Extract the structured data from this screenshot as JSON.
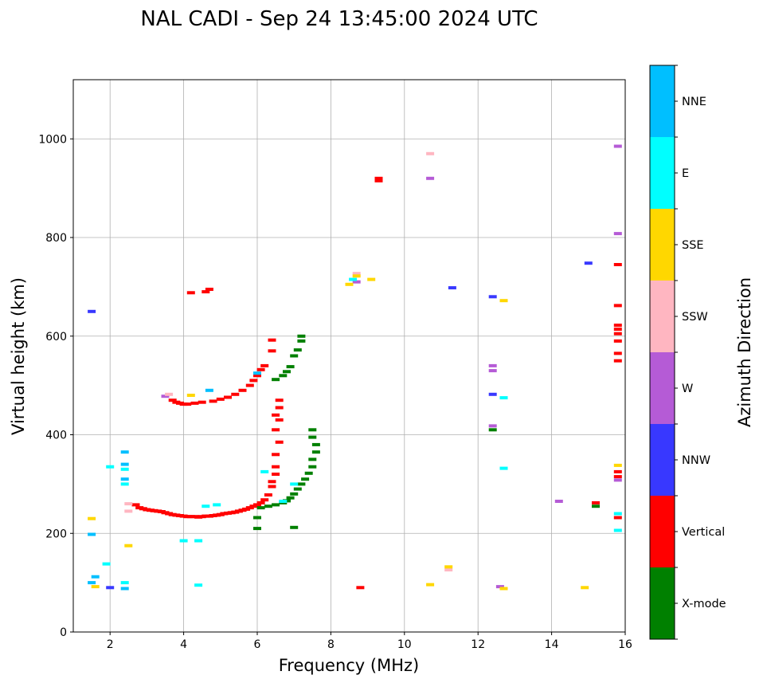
{
  "chart_data": {
    "type": "scatter",
    "title": "NAL CADI - Sep 24 13:45:00 2024 UTC",
    "xlabel": "Frequency (MHz)",
    "ylabel": "Virtual height (km)",
    "xlim": [
      1,
      16
    ],
    "ylim": [
      0,
      1120
    ],
    "xticks": [
      2,
      4,
      6,
      8,
      10,
      12,
      14,
      16
    ],
    "yticks": [
      0,
      200,
      400,
      600,
      800,
      1000
    ],
    "grid": true,
    "colorbar": {
      "title": "Azimuth Direction",
      "categories": [
        {
          "name": "X-mode",
          "color": "#008000"
        },
        {
          "name": "Vertical",
          "color": "#ff0000"
        },
        {
          "name": "NNW",
          "color": "#3838ff"
        },
        {
          "name": "W",
          "color": "#b55bd6"
        },
        {
          "name": "SSW",
          "color": "#ffb6c1"
        },
        {
          "name": "SSE",
          "color": "#ffd700"
        },
        {
          "name": "E",
          "color": "#00ffff"
        },
        {
          "name": "NNE",
          "color": "#00bfff"
        }
      ]
    },
    "points": [
      {
        "series": "Vertical",
        "x": 2.7,
        "y": 258
      },
      {
        "series": "Vertical",
        "x": 2.8,
        "y": 252
      },
      {
        "series": "Vertical",
        "x": 2.9,
        "y": 250
      },
      {
        "series": "Vertical",
        "x": 3.0,
        "y": 248
      },
      {
        "series": "Vertical",
        "x": 3.1,
        "y": 247
      },
      {
        "series": "Vertical",
        "x": 3.2,
        "y": 246
      },
      {
        "series": "Vertical",
        "x": 3.3,
        "y": 245
      },
      {
        "series": "Vertical",
        "x": 3.4,
        "y": 244
      },
      {
        "series": "Vertical",
        "x": 3.5,
        "y": 242
      },
      {
        "series": "Vertical",
        "x": 3.6,
        "y": 240
      },
      {
        "series": "Vertical",
        "x": 3.7,
        "y": 238
      },
      {
        "series": "Vertical",
        "x": 3.8,
        "y": 237
      },
      {
        "series": "Vertical",
        "x": 3.9,
        "y": 236
      },
      {
        "series": "Vertical",
        "x": 4.0,
        "y": 235
      },
      {
        "series": "Vertical",
        "x": 4.1,
        "y": 234
      },
      {
        "series": "Vertical",
        "x": 4.2,
        "y": 234
      },
      {
        "series": "Vertical",
        "x": 4.3,
        "y": 234
      },
      {
        "series": "Vertical",
        "x": 4.4,
        "y": 233
      },
      {
        "series": "Vertical",
        "x": 4.5,
        "y": 234
      },
      {
        "series": "Vertical",
        "x": 4.6,
        "y": 235
      },
      {
        "series": "Vertical",
        "x": 4.7,
        "y": 235
      },
      {
        "series": "Vertical",
        "x": 4.8,
        "y": 236
      },
      {
        "series": "Vertical",
        "x": 4.9,
        "y": 237
      },
      {
        "series": "Vertical",
        "x": 5.0,
        "y": 238
      },
      {
        "series": "Vertical",
        "x": 5.1,
        "y": 240
      },
      {
        "series": "Vertical",
        "x": 5.2,
        "y": 241
      },
      {
        "series": "Vertical",
        "x": 5.3,
        "y": 242
      },
      {
        "series": "Vertical",
        "x": 5.4,
        "y": 243
      },
      {
        "series": "Vertical",
        "x": 5.5,
        "y": 245
      },
      {
        "series": "Vertical",
        "x": 5.6,
        "y": 247
      },
      {
        "series": "Vertical",
        "x": 5.7,
        "y": 249
      },
      {
        "series": "Vertical",
        "x": 5.8,
        "y": 252
      },
      {
        "series": "Vertical",
        "x": 5.9,
        "y": 255
      },
      {
        "series": "Vertical",
        "x": 6.0,
        "y": 258
      },
      {
        "series": "Vertical",
        "x": 6.1,
        "y": 262
      },
      {
        "series": "Vertical",
        "x": 6.2,
        "y": 268
      },
      {
        "series": "Vertical",
        "x": 6.3,
        "y": 278
      },
      {
        "series": "Vertical",
        "x": 6.4,
        "y": 295
      },
      {
        "series": "Vertical",
        "x": 6.4,
        "y": 305
      },
      {
        "series": "Vertical",
        "x": 6.5,
        "y": 320
      },
      {
        "series": "Vertical",
        "x": 6.5,
        "y": 335
      },
      {
        "series": "Vertical",
        "x": 6.5,
        "y": 360
      },
      {
        "series": "Vertical",
        "x": 6.6,
        "y": 385
      },
      {
        "series": "Vertical",
        "x": 6.5,
        "y": 410
      },
      {
        "series": "Vertical",
        "x": 6.6,
        "y": 430
      },
      {
        "series": "Vertical",
        "x": 6.5,
        "y": 440
      },
      {
        "series": "Vertical",
        "x": 6.6,
        "y": 455
      },
      {
        "series": "Vertical",
        "x": 6.6,
        "y": 470
      },
      {
        "series": "Vertical",
        "x": 3.7,
        "y": 470
      },
      {
        "series": "Vertical",
        "x": 3.8,
        "y": 466
      },
      {
        "series": "Vertical",
        "x": 3.9,
        "y": 464
      },
      {
        "series": "Vertical",
        "x": 4.0,
        "y": 462
      },
      {
        "series": "Vertical",
        "x": 4.1,
        "y": 462
      },
      {
        "series": "Vertical",
        "x": 4.3,
        "y": 464
      },
      {
        "series": "Vertical",
        "x": 4.5,
        "y": 466
      },
      {
        "series": "Vertical",
        "x": 4.8,
        "y": 468
      },
      {
        "series": "Vertical",
        "x": 5.0,
        "y": 472
      },
      {
        "series": "Vertical",
        "x": 5.2,
        "y": 476
      },
      {
        "series": "Vertical",
        "x": 5.4,
        "y": 482
      },
      {
        "series": "Vertical",
        "x": 5.6,
        "y": 490
      },
      {
        "series": "Vertical",
        "x": 5.8,
        "y": 500
      },
      {
        "series": "Vertical",
        "x": 5.9,
        "y": 510
      },
      {
        "series": "Vertical",
        "x": 6.0,
        "y": 520
      },
      {
        "series": "Vertical",
        "x": 6.1,
        "y": 532
      },
      {
        "series": "Vertical",
        "x": 6.2,
        "y": 540
      },
      {
        "series": "Vertical",
        "x": 6.4,
        "y": 570
      },
      {
        "series": "Vertical",
        "x": 6.4,
        "y": 592
      },
      {
        "series": "Vertical",
        "x": 4.2,
        "y": 688
      },
      {
        "series": "Vertical",
        "x": 4.6,
        "y": 690
      },
      {
        "series": "Vertical",
        "x": 4.7,
        "y": 695
      },
      {
        "series": "Vertical",
        "x": 9.3,
        "y": 920
      },
      {
        "series": "Vertical",
        "x": 9.3,
        "y": 915
      },
      {
        "series": "Vertical",
        "x": 8.8,
        "y": 90
      },
      {
        "series": "Vertical",
        "x": 15.8,
        "y": 745
      },
      {
        "series": "Vertical",
        "x": 15.8,
        "y": 662
      },
      {
        "series": "Vertical",
        "x": 15.8,
        "y": 622
      },
      {
        "series": "Vertical",
        "x": 15.8,
        "y": 614
      },
      {
        "series": "Vertical",
        "x": 15.8,
        "y": 605
      },
      {
        "series": "Vertical",
        "x": 15.8,
        "y": 590
      },
      {
        "series": "Vertical",
        "x": 15.8,
        "y": 565
      },
      {
        "series": "Vertical",
        "x": 15.8,
        "y": 550
      },
      {
        "series": "Vertical",
        "x": 15.8,
        "y": 325
      },
      {
        "series": "Vertical",
        "x": 15.8,
        "y": 315
      },
      {
        "series": "Vertical",
        "x": 15.8,
        "y": 232
      },
      {
        "series": "Vertical",
        "x": 15.2,
        "y": 262
      },
      {
        "series": "X-mode",
        "x": 6.0,
        "y": 232
      },
      {
        "series": "X-mode",
        "x": 6.0,
        "y": 210
      },
      {
        "series": "X-mode",
        "x": 6.1,
        "y": 252
      },
      {
        "series": "X-mode",
        "x": 6.3,
        "y": 255
      },
      {
        "series": "X-mode",
        "x": 6.5,
        "y": 258
      },
      {
        "series": "X-mode",
        "x": 6.7,
        "y": 262
      },
      {
        "series": "X-mode",
        "x": 6.8,
        "y": 266
      },
      {
        "series": "X-mode",
        "x": 6.9,
        "y": 272
      },
      {
        "series": "X-mode",
        "x": 7.0,
        "y": 280
      },
      {
        "series": "X-mode",
        "x": 7.1,
        "y": 290
      },
      {
        "series": "X-mode",
        "x": 7.2,
        "y": 300
      },
      {
        "series": "X-mode",
        "x": 7.3,
        "y": 310
      },
      {
        "series": "X-mode",
        "x": 7.4,
        "y": 322
      },
      {
        "series": "X-mode",
        "x": 7.5,
        "y": 335
      },
      {
        "series": "X-mode",
        "x": 7.5,
        "y": 350
      },
      {
        "series": "X-mode",
        "x": 7.6,
        "y": 365
      },
      {
        "series": "X-mode",
        "x": 7.6,
        "y": 380
      },
      {
        "series": "X-mode",
        "x": 7.5,
        "y": 395
      },
      {
        "series": "X-mode",
        "x": 7.5,
        "y": 410
      },
      {
        "series": "X-mode",
        "x": 7.0,
        "y": 212
      },
      {
        "series": "X-mode",
        "x": 6.5,
        "y": 512
      },
      {
        "series": "X-mode",
        "x": 6.7,
        "y": 520
      },
      {
        "series": "X-mode",
        "x": 6.8,
        "y": 528
      },
      {
        "series": "X-mode",
        "x": 6.9,
        "y": 538
      },
      {
        "series": "X-mode",
        "x": 7.0,
        "y": 560
      },
      {
        "series": "X-mode",
        "x": 7.1,
        "y": 572
      },
      {
        "series": "X-mode",
        "x": 7.2,
        "y": 590
      },
      {
        "series": "X-mode",
        "x": 7.2,
        "y": 600
      },
      {
        "series": "X-mode",
        "x": 12.4,
        "y": 410
      },
      {
        "series": "X-mode",
        "x": 15.2,
        "y": 255
      },
      {
        "series": "NNW",
        "x": 1.5,
        "y": 650
      },
      {
        "series": "NNW",
        "x": 11.3,
        "y": 698
      },
      {
        "series": "NNW",
        "x": 12.4,
        "y": 680
      },
      {
        "series": "NNW",
        "x": 12.4,
        "y": 482
      },
      {
        "series": "NNW",
        "x": 15.0,
        "y": 748
      },
      {
        "series": "NNW",
        "x": 2.0,
        "y": 90
      },
      {
        "series": "W",
        "x": 8.7,
        "y": 710
      },
      {
        "series": "W",
        "x": 10.7,
        "y": 920
      },
      {
        "series": "W",
        "x": 12.4,
        "y": 540
      },
      {
        "series": "W",
        "x": 12.4,
        "y": 530
      },
      {
        "series": "W",
        "x": 12.4,
        "y": 418
      },
      {
        "series": "W",
        "x": 14.2,
        "y": 265
      },
      {
        "series": "W",
        "x": 15.8,
        "y": 985
      },
      {
        "series": "W",
        "x": 15.8,
        "y": 808
      },
      {
        "series": "W",
        "x": 15.8,
        "y": 308
      },
      {
        "series": "W",
        "x": 12.6,
        "y": 92
      },
      {
        "series": "W",
        "x": 3.5,
        "y": 478
      },
      {
        "series": "SSW",
        "x": 10.7,
        "y": 970
      },
      {
        "series": "SSW",
        "x": 8.7,
        "y": 727
      },
      {
        "series": "SSW",
        "x": 11.2,
        "y": 126
      },
      {
        "series": "SSW",
        "x": 2.5,
        "y": 245
      },
      {
        "series": "SSW",
        "x": 2.5,
        "y": 260
      },
      {
        "series": "SSW",
        "x": 3.6,
        "y": 482
      },
      {
        "series": "SSE",
        "x": 8.7,
        "y": 722
      },
      {
        "series": "SSE",
        "x": 9.1,
        "y": 715
      },
      {
        "series": "SSE",
        "x": 8.5,
        "y": 705
      },
      {
        "series": "SSE",
        "x": 12.7,
        "y": 672
      },
      {
        "series": "SSE",
        "x": 15.8,
        "y": 338
      },
      {
        "series": "SSE",
        "x": 11.2,
        "y": 132
      },
      {
        "series": "SSE",
        "x": 10.7,
        "y": 96
      },
      {
        "series": "SSE",
        "x": 12.7,
        "y": 88
      },
      {
        "series": "SSE",
        "x": 14.9,
        "y": 90
      },
      {
        "series": "SSE",
        "x": 1.6,
        "y": 92
      },
      {
        "series": "SSE",
        "x": 1.5,
        "y": 230
      },
      {
        "series": "SSE",
        "x": 2.5,
        "y": 175
      },
      {
        "series": "SSE",
        "x": 4.2,
        "y": 480
      },
      {
        "series": "E",
        "x": 8.6,
        "y": 715
      },
      {
        "series": "E",
        "x": 12.7,
        "y": 475
      },
      {
        "series": "E",
        "x": 12.7,
        "y": 332
      },
      {
        "series": "E",
        "x": 15.8,
        "y": 240
      },
      {
        "series": "E",
        "x": 15.8,
        "y": 206
      },
      {
        "series": "E",
        "x": 4.4,
        "y": 95
      },
      {
        "series": "E",
        "x": 4.0,
        "y": 185
      },
      {
        "series": "E",
        "x": 4.4,
        "y": 185
      },
      {
        "series": "E",
        "x": 6.2,
        "y": 325
      },
      {
        "series": "E",
        "x": 6.7,
        "y": 265
      },
      {
        "series": "E",
        "x": 7.0,
        "y": 300
      },
      {
        "series": "E",
        "x": 2.4,
        "y": 100
      },
      {
        "series": "E",
        "x": 2.4,
        "y": 300
      },
      {
        "series": "E",
        "x": 2.4,
        "y": 330
      },
      {
        "series": "E",
        "x": 1.9,
        "y": 138
      },
      {
        "series": "E",
        "x": 4.6,
        "y": 255
      },
      {
        "series": "E",
        "x": 4.9,
        "y": 258
      },
      {
        "series": "E",
        "x": 2.0,
        "y": 335
      },
      {
        "series": "NNE",
        "x": 1.5,
        "y": 100
      },
      {
        "series": "NNE",
        "x": 1.6,
        "y": 112
      },
      {
        "series": "NNE",
        "x": 2.4,
        "y": 88
      },
      {
        "series": "NNE",
        "x": 2.4,
        "y": 365
      },
      {
        "series": "NNE",
        "x": 2.4,
        "y": 340
      },
      {
        "series": "NNE",
        "x": 2.4,
        "y": 310
      },
      {
        "series": "NNE",
        "x": 1.5,
        "y": 198
      },
      {
        "series": "NNE",
        "x": 4.7,
        "y": 490
      },
      {
        "series": "NNE",
        "x": 6.0,
        "y": 525
      }
    ]
  }
}
